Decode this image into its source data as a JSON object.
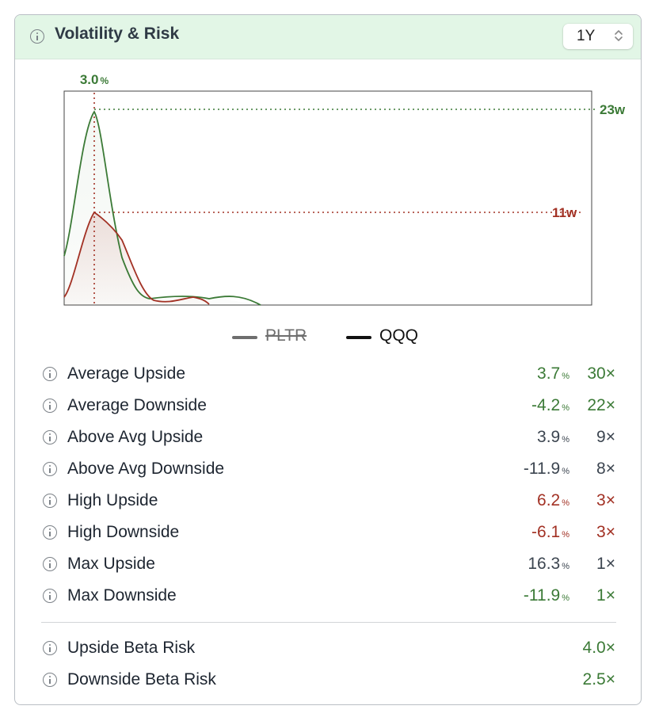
{
  "panel": {
    "title": "Volatility & Risk",
    "period": "1Y"
  },
  "chart": {
    "peak_label": "3.0",
    "peak_unit": "%",
    "green_marker": "23w",
    "red_marker": "11w",
    "colors": {
      "green": "#3b7a36",
      "red": "#a23124",
      "grid": "#444444"
    }
  },
  "legend": [
    {
      "label": "PLTR",
      "color": "#6e6e6e",
      "struck": true
    },
    {
      "label": "QQQ",
      "color": "#111111",
      "struck": false
    }
  ],
  "metrics": [
    {
      "label": "Average Upside",
      "value": "3.7",
      "unit": "%",
      "times": "30×",
      "color": "green"
    },
    {
      "label": "Average Downside",
      "value": "-4.2",
      "unit": "%",
      "times": "22×",
      "color": "green"
    },
    {
      "label": "Above Avg Upside",
      "value": "3.9",
      "unit": "%",
      "times": "9×",
      "color": "dark"
    },
    {
      "label": "Above Avg Downside",
      "value": "-11.9",
      "unit": "%",
      "times": "8×",
      "color": "dark"
    },
    {
      "label": "High Upside",
      "value": "6.2",
      "unit": "%",
      "times": "3×",
      "color": "red"
    },
    {
      "label": "High Downside",
      "value": "-6.1",
      "unit": "%",
      "times": "3×",
      "color": "red"
    },
    {
      "label": "Max Upside",
      "value": "16.3",
      "unit": "%",
      "times": "1×",
      "color": "dark"
    },
    {
      "label": "Max Downside",
      "value": "-11.9",
      "unit": "%",
      "times": "1×",
      "color": "green"
    }
  ],
  "beta": [
    {
      "label": "Upside Beta Risk",
      "times": "4.0×",
      "color": "green"
    },
    {
      "label": "Downside Beta Risk",
      "times": "2.5×",
      "color": "green"
    }
  ]
}
